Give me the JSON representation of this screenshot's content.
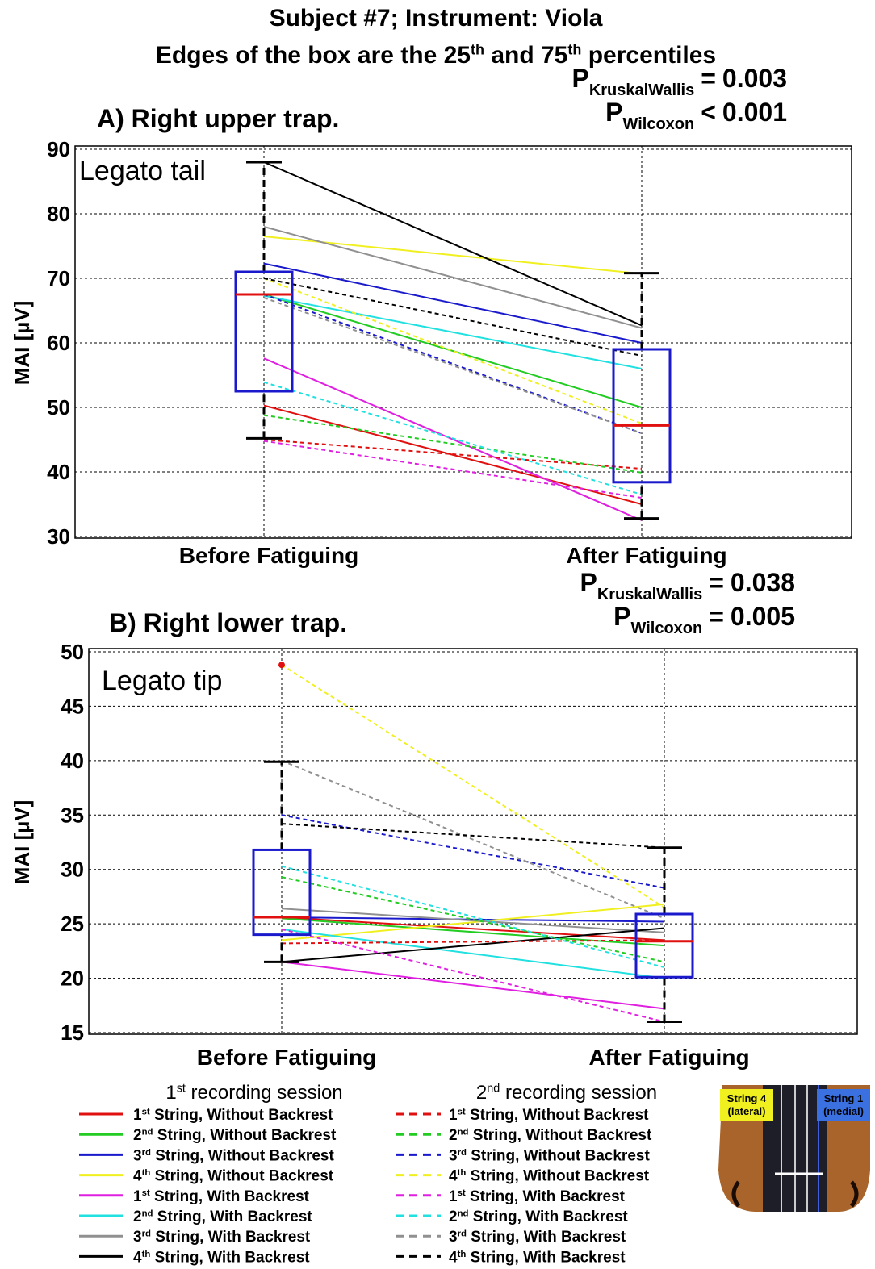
{
  "header": {
    "title": "Subject #7; Instrument: Viola",
    "subtitle_parts": [
      "Edges of the box are the 25",
      "th",
      " and 75",
      "th",
      " percentiles"
    ]
  },
  "chart_data": [
    {
      "type": "box",
      "title": "A) Right upper trap.",
      "annotation": "Legato tail",
      "ylabel": "MAI [µV]",
      "stats": [
        {
          "label": "P",
          "subscript": "KruskalWallis",
          "relation": "=",
          "value": 0.003
        },
        {
          "label": "P",
          "subscript": "Wilcoxon",
          "relation": "<",
          "value": 0.001
        }
      ],
      "categories": [
        "Before Fatiguing",
        "After Fatiguing"
      ],
      "ylim": [
        30,
        90
      ],
      "yticks": [
        30,
        40,
        50,
        60,
        70,
        80,
        90
      ],
      "grid": true,
      "boxes": [
        {
          "whisker_low": 45.2,
          "q1": 52.5,
          "median": 67.5,
          "q3": 71,
          "whisker_high": 88
        },
        {
          "whisker_low": 32.8,
          "q1": 38.4,
          "median": 47.2,
          "q3": 59,
          "whisker_high": 70.8
        }
      ],
      "box_color": "#1a1acc",
      "median_color": "#e01010",
      "series": [
        {
          "color": "#e01010",
          "dashed": false,
          "values": [
            50.3,
            35
          ]
        },
        {
          "color": "#22cc22",
          "dashed": false,
          "values": [
            67.5,
            50
          ]
        },
        {
          "color": "#1a1acc",
          "dashed": false,
          "values": [
            72.3,
            60
          ]
        },
        {
          "color": "#f0f020",
          "dashed": false,
          "values": [
            76.5,
            70.7
          ]
        },
        {
          "color": "#e020e0",
          "dashed": false,
          "values": [
            57.6,
            32.5
          ]
        },
        {
          "color": "#20e0e0",
          "dashed": false,
          "values": [
            67.3,
            56
          ]
        },
        {
          "color": "#909090",
          "dashed": false,
          "values": [
            78,
            62.3
          ]
        },
        {
          "color": "#000000",
          "dashed": false,
          "values": [
            88,
            62.7
          ]
        },
        {
          "color": "#e01010",
          "dashed": true,
          "values": [
            45,
            40.5
          ]
        },
        {
          "color": "#22cc22",
          "dashed": true,
          "values": [
            48.8,
            39.9
          ]
        },
        {
          "color": "#1a1acc",
          "dashed": true,
          "values": [
            67.5,
            46
          ]
        },
        {
          "color": "#f0f020",
          "dashed": true,
          "values": [
            70,
            47.5
          ]
        },
        {
          "color": "#e020e0",
          "dashed": true,
          "values": [
            44.8,
            36
          ]
        },
        {
          "color": "#20e0e0",
          "dashed": true,
          "values": [
            53.9,
            36.5
          ]
        },
        {
          "color": "#909090",
          "dashed": true,
          "values": [
            67,
            46
          ]
        },
        {
          "color": "#000000",
          "dashed": true,
          "values": [
            70,
            58
          ]
        }
      ]
    },
    {
      "type": "box",
      "title": "B) Right lower trap.",
      "annotation": "Legato tip",
      "ylabel": "MAI [µV]",
      "stats": [
        {
          "label": "P",
          "subscript": "KruskalWallis",
          "relation": "=",
          "value": 0.038
        },
        {
          "label": "P",
          "subscript": "Wilcoxon",
          "relation": "=",
          "value": 0.005
        }
      ],
      "categories": [
        "Before Fatiguing",
        "After Fatiguing"
      ],
      "ylim": [
        15,
        50
      ],
      "yticks": [
        15,
        20,
        25,
        30,
        35,
        40,
        45,
        50
      ],
      "grid": true,
      "boxes": [
        {
          "whisker_low": 21.5,
          "q1": 24,
          "median": 25.6,
          "q3": 31.8,
          "whisker_high": 39.9,
          "outliers": [
            48.8
          ]
        },
        {
          "whisker_low": 16,
          "q1": 20.1,
          "median": 23.4,
          "q3": 25.9,
          "whisker_high": 32
        }
      ],
      "box_color": "#1a1acc",
      "median_color": "#e01010",
      "series": [
        {
          "color": "#e01010",
          "dashed": false,
          "values": [
            25.6,
            23.5
          ]
        },
        {
          "color": "#22cc22",
          "dashed": false,
          "values": [
            25.5,
            23
          ]
        },
        {
          "color": "#1a1acc",
          "dashed": false,
          "values": [
            25.6,
            25.2
          ]
        },
        {
          "color": "#f0f020",
          "dashed": false,
          "values": [
            23.5,
            26.8
          ]
        },
        {
          "color": "#e020e0",
          "dashed": false,
          "values": [
            21.5,
            17.2
          ]
        },
        {
          "color": "#20e0e0",
          "dashed": false,
          "values": [
            24.5,
            20
          ]
        },
        {
          "color": "#909090",
          "dashed": false,
          "values": [
            26.4,
            24.2
          ]
        },
        {
          "color": "#000000",
          "dashed": false,
          "values": [
            21.5,
            24.6
          ]
        },
        {
          "color": "#e01010",
          "dashed": true,
          "values": [
            23.2,
            23.5
          ]
        },
        {
          "color": "#22cc22",
          "dashed": true,
          "values": [
            29.3,
            21.5
          ]
        },
        {
          "color": "#1a1acc",
          "dashed": true,
          "values": [
            35,
            28.3
          ]
        },
        {
          "color": "#f0f020",
          "dashed": true,
          "values": [
            48.8,
            26.5
          ]
        },
        {
          "color": "#e020e0",
          "dashed": true,
          "values": [
            24.5,
            16
          ]
        },
        {
          "color": "#20e0e0",
          "dashed": true,
          "values": [
            30.3,
            21
          ]
        },
        {
          "color": "#909090",
          "dashed": true,
          "values": [
            40,
            25.5
          ]
        },
        {
          "color": "#000000",
          "dashed": true,
          "values": [
            34.2,
            32
          ]
        }
      ]
    }
  ],
  "legend": {
    "colors": [
      "#e01010",
      "#22cc22",
      "#1a1acc",
      "#f0f020",
      "#e020e0",
      "#20e0e0",
      "#909090",
      "#000000"
    ],
    "sessions": [
      {
        "title_parts": [
          "1",
          "st",
          " recording session"
        ],
        "dashed": false,
        "entries": [
          [
            "1",
            "st",
            " String, Without Backrest"
          ],
          [
            "2",
            "nd",
            " String, Without Backrest"
          ],
          [
            "3",
            "rd",
            " String, Without Backrest"
          ],
          [
            "4",
            "th",
            " String, Without Backrest"
          ],
          [
            "1",
            "st",
            " String, With Backrest"
          ],
          [
            "2",
            "nd",
            " String, With Backrest"
          ],
          [
            "3",
            "rd",
            " String, With Backrest"
          ],
          [
            "4",
            "th",
            " String, With Backrest"
          ]
        ]
      },
      {
        "title_parts": [
          "2",
          "nd",
          " recording session"
        ],
        "dashed": true,
        "entries": [
          [
            "1",
            "st",
            " String, Without Backrest"
          ],
          [
            "2",
            "nd",
            " String, Without Backrest"
          ],
          [
            "3",
            "rd",
            " String, Without Backrest"
          ],
          [
            "4",
            "th",
            " String, Without Backrest"
          ],
          [
            "1",
            "st",
            " String, With Backrest"
          ],
          [
            "2",
            "nd",
            " String, With Backrest"
          ],
          [
            "3",
            "rd",
            " String, With Backrest"
          ],
          [
            "4",
            "th",
            " String, With Backrest"
          ]
        ]
      }
    ]
  },
  "image_labels": {
    "left": [
      "String 4",
      "(lateral)"
    ],
    "right": [
      "String 1",
      "(medial)"
    ]
  }
}
